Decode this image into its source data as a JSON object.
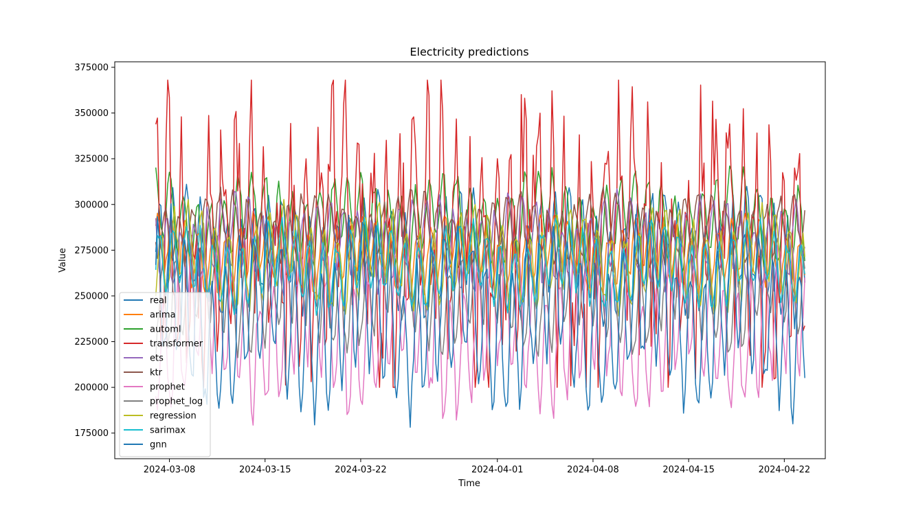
{
  "chart_data": {
    "type": "line",
    "title": "Electricity predictions",
    "xlabel": "Time",
    "ylabel": "Value",
    "x_start": "2024-03-07",
    "x_end": "2024-04-23",
    "xlim": [
      "2024-03-04",
      "2024-04-25"
    ],
    "ylim": [
      161000,
      378000
    ],
    "x_ticks": [
      {
        "date": "2024-03-08",
        "label": "2024-03-08"
      },
      {
        "date": "2024-03-15",
        "label": "2024-03-15"
      },
      {
        "date": "2024-03-22",
        "label": "2024-03-22"
      },
      {
        "date": "2024-04-01",
        "label": "2024-04-01"
      },
      {
        "date": "2024-04-08",
        "label": "2024-04-08"
      },
      {
        "date": "2024-04-15",
        "label": "2024-04-15"
      },
      {
        "date": "2024-04-22",
        "label": "2024-04-22"
      }
    ],
    "y_ticks": [
      {
        "value": 175000,
        "label": "175000"
      },
      {
        "value": 200000,
        "label": "200000"
      },
      {
        "value": 225000,
        "label": "225000"
      },
      {
        "value": 250000,
        "label": "250000"
      },
      {
        "value": 275000,
        "label": "275000"
      },
      {
        "value": 300000,
        "label": "300000"
      },
      {
        "value": 325000,
        "label": "325000"
      },
      {
        "value": 350000,
        "label": "350000"
      },
      {
        "value": 375000,
        "label": "375000"
      }
    ],
    "grid": false,
    "legend_position": "lower-left",
    "series": [
      {
        "name": "real",
        "color": "#1f77b4",
        "approx_min": 228000,
        "approx_max": 316000
      },
      {
        "name": "arima",
        "color": "#ff7f0e",
        "approx_min": 245000,
        "approx_max": 300000
      },
      {
        "name": "automl",
        "color": "#2ca02c",
        "approx_min": 258000,
        "approx_max": 325000
      },
      {
        "name": "transformer",
        "color": "#d62728",
        "approx_min": 200000,
        "approx_max": 368000
      },
      {
        "name": "ets",
        "color": "#9467bd",
        "approx_min": 245000,
        "approx_max": 312000
      },
      {
        "name": "ktr",
        "color": "#8c564b",
        "approx_min": 262000,
        "approx_max": 312000
      },
      {
        "name": "prophet",
        "color": "#e377c2",
        "approx_min": 174000,
        "approx_max": 290000
      },
      {
        "name": "prophet_log",
        "color": "#7f7f7f",
        "approx_min": 210000,
        "approx_max": 295000
      },
      {
        "name": "regression",
        "color": "#bcbd22",
        "approx_min": 235000,
        "approx_max": 305000
      },
      {
        "name": "sarimax",
        "color": "#17becf",
        "approx_min": 237000,
        "approx_max": 296000
      },
      {
        "name": "gnn",
        "color": "#1f77b4",
        "approx_min": 172000,
        "approx_max": 305000
      }
    ]
  }
}
